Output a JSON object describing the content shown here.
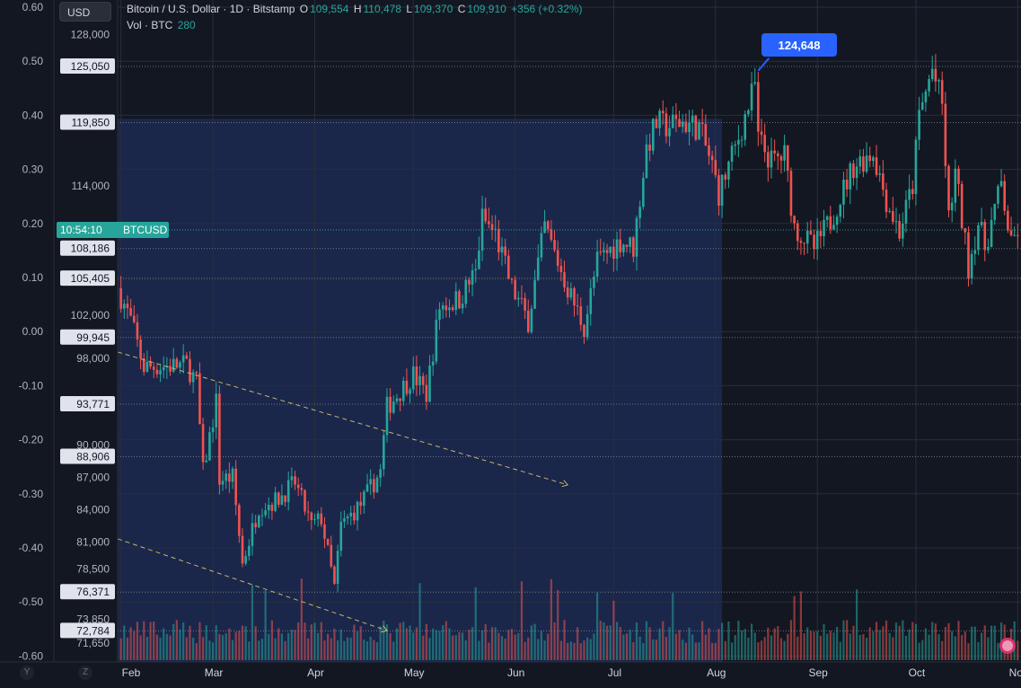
{
  "header": {
    "currency": "USD",
    "symbol_title": "Bitcoin / U.S. Dollar · 1D · Bitstamp",
    "ohlc": [
      {
        "key": "O",
        "value": "109,554"
      },
      {
        "key": "H",
        "value": "110,478"
      },
      {
        "key": "L",
        "value": "109,370"
      },
      {
        "key": "C",
        "value": "109,910"
      }
    ],
    "change": "+356 (+0.32%)",
    "volume_label": "Vol · BTC",
    "volume_value": "280"
  },
  "left_axis": {
    "labels": [
      "0.60",
      "0.50",
      "0.40",
      "0.30",
      "0.20",
      "0.10",
      "0.00",
      "-0.10",
      "-0.20",
      "-0.30",
      "-0.40",
      "-0.50",
      "-0.60"
    ]
  },
  "price_axis": {
    "labels": [
      "128,000",
      "114,000",
      "102,000",
      "98,000",
      "90,000",
      "87,000",
      "84,000",
      "81,000",
      "78,500",
      "73,850",
      "71,650"
    ],
    "boxed_levels": [
      "125,050",
      "119,850",
      "108,186",
      "105,405",
      "99,945",
      "93,771",
      "88,906",
      "76,371",
      "72,784"
    ],
    "current_time": "10:54:10",
    "current_symbol": "BTCUSD",
    "peak_label": "124,648"
  },
  "time_axis": {
    "labels": [
      "Feb",
      "Mar",
      "Apr",
      "May",
      "Jun",
      "Jul",
      "Aug",
      "Sep",
      "Oct",
      "Nov"
    ]
  },
  "bottom_left": {
    "y_btn": "Y",
    "z_btn": "Z"
  },
  "colors": {
    "background": "#131722",
    "up": "#26a69a",
    "down": "#ef5350",
    "highlight_zone": "#1c2a52",
    "callout": "#2962ff",
    "current_price_tag": "#26a69a",
    "trend_lines": "#c8b46a"
  },
  "chart_data": {
    "type": "candlestick",
    "title": "Bitcoin / U.S. Dollar · 1D · Bitstamp",
    "x_range": [
      "2025-01-31",
      "2025-11-02"
    ],
    "y_range": [
      69900,
      131200
    ],
    "highlighted_range": [
      "2025-01-31",
      "2025-08-03"
    ],
    "peak": {
      "date": "2025-08-14",
      "value": 124648
    },
    "horizontal_levels": [
      125050,
      119850,
      108186,
      105405,
      99945,
      93771,
      88906,
      76371,
      72784
    ],
    "trend_lines": [
      {
        "from": {
          "date": "2025-01-31",
          "value": 98600
        },
        "to": {
          "date": "2025-06-17",
          "value": 86300
        }
      },
      {
        "from": {
          "date": "2025-01-31",
          "value": 81300
        },
        "to": {
          "date": "2025-04-23",
          "value": 72800
        }
      }
    ],
    "close_series": [
      {
        "date": "2025-01-31",
        "close": 104500
      },
      {
        "date": "2025-02-04",
        "close": 101500
      },
      {
        "date": "2025-02-08",
        "close": 97200
      },
      {
        "date": "2025-02-15",
        "close": 97300
      },
      {
        "date": "2025-02-21",
        "close": 97400
      },
      {
        "date": "2025-02-24",
        "close": 95800
      },
      {
        "date": "2025-02-26",
        "close": 87500
      },
      {
        "date": "2025-03-02",
        "close": 94000
      },
      {
        "date": "2025-03-03",
        "close": 86800
      },
      {
        "date": "2025-03-07",
        "close": 87000
      },
      {
        "date": "2025-03-10",
        "close": 79000
      },
      {
        "date": "2025-03-15",
        "close": 84300
      },
      {
        "date": "2025-03-20",
        "close": 84800
      },
      {
        "date": "2025-03-26",
        "close": 86500
      },
      {
        "date": "2025-03-31",
        "close": 82500
      },
      {
        "date": "2025-04-03",
        "close": 83200
      },
      {
        "date": "2025-04-07",
        "close": 76800
      },
      {
        "date": "2025-04-09",
        "close": 82500
      },
      {
        "date": "2025-04-15",
        "close": 84500
      },
      {
        "date": "2025-04-21",
        "close": 87500
      },
      {
        "date": "2025-04-23",
        "close": 93500
      },
      {
        "date": "2025-05-01",
        "close": 96500
      },
      {
        "date": "2025-05-05",
        "close": 94700
      },
      {
        "date": "2025-05-09",
        "close": 102800
      },
      {
        "date": "2025-05-15",
        "close": 103500
      },
      {
        "date": "2025-05-20",
        "close": 106000
      },
      {
        "date": "2025-05-22",
        "close": 111000
      },
      {
        "date": "2025-05-26",
        "close": 109500
      },
      {
        "date": "2025-05-31",
        "close": 104500
      },
      {
        "date": "2025-06-05",
        "close": 101500
      },
      {
        "date": "2025-06-10",
        "close": 110200
      },
      {
        "date": "2025-06-17",
        "close": 104500
      },
      {
        "date": "2025-06-22",
        "close": 100900
      },
      {
        "date": "2025-06-26",
        "close": 107000
      },
      {
        "date": "2025-07-03",
        "close": 108900
      },
      {
        "date": "2025-07-07",
        "close": 108300
      },
      {
        "date": "2025-07-11",
        "close": 117500
      },
      {
        "date": "2025-07-14",
        "close": 119800
      },
      {
        "date": "2025-07-17",
        "close": 119500
      },
      {
        "date": "2025-07-22",
        "close": 119900
      },
      {
        "date": "2025-07-27",
        "close": 119400
      },
      {
        "date": "2025-07-31",
        "close": 115800
      },
      {
        "date": "2025-08-02",
        "close": 113300
      },
      {
        "date": "2025-08-07",
        "close": 117500
      },
      {
        "date": "2025-08-13",
        "close": 123300
      },
      {
        "date": "2025-08-14",
        "close": 118300
      },
      {
        "date": "2025-08-18",
        "close": 116200
      },
      {
        "date": "2025-08-22",
        "close": 116800
      },
      {
        "date": "2025-08-25",
        "close": 110200
      },
      {
        "date": "2025-08-31",
        "close": 108200
      },
      {
        "date": "2025-09-05",
        "close": 110800
      },
      {
        "date": "2025-09-12",
        "close": 115900
      },
      {
        "date": "2025-09-18",
        "close": 117100
      },
      {
        "date": "2025-09-22",
        "close": 112700
      },
      {
        "date": "2025-09-26",
        "close": 109700
      },
      {
        "date": "2025-09-30",
        "close": 114000
      },
      {
        "date": "2025-10-02",
        "close": 120500
      },
      {
        "date": "2025-10-06",
        "close": 124800
      },
      {
        "date": "2025-10-09",
        "close": 121400
      },
      {
        "date": "2025-10-11",
        "close": 110800
      },
      {
        "date": "2025-10-13",
        "close": 115200
      },
      {
        "date": "2025-10-17",
        "close": 106500
      },
      {
        "date": "2025-10-20",
        "close": 110600
      },
      {
        "date": "2025-10-22",
        "close": 108300
      },
      {
        "date": "2025-10-27",
        "close": 114100
      },
      {
        "date": "2025-10-30",
        "close": 108300
      },
      {
        "date": "2025-11-01",
        "close": 109910
      }
    ]
  }
}
